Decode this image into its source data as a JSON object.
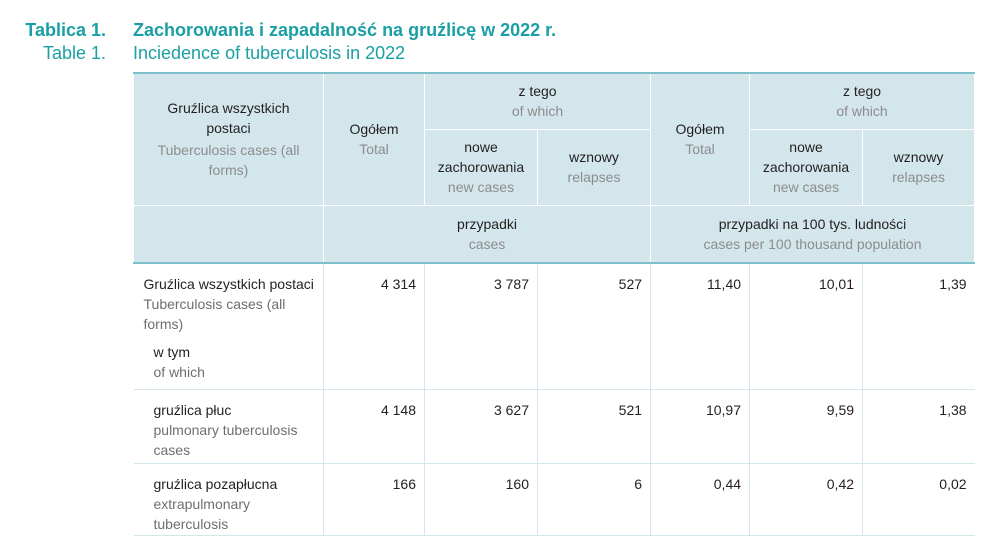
{
  "title": {
    "label_pl": "Tablica 1.",
    "label_en": "Table 1.",
    "text_pl": "Zachorowania i zapadalność na gruźlicę w 2022 r.",
    "text_en": "Inciedence of tuberculosis in 2022"
  },
  "header": {
    "col0_pl": "Gruźlica wszystkich postaci",
    "col0_en": "Tuberculosis cases (all forms)",
    "total_pl": "Ogółem",
    "total_en": "Total",
    "of_which_pl": "z tego",
    "of_which_en": "of which",
    "new_pl": "nowe zachorowania",
    "new_en": "new cases",
    "relapses_pl": "wznowy",
    "relapses_en": "relapses",
    "cases_pl": "przypadki",
    "cases_en": "cases",
    "per100k_pl": "przypadki na 100 tys. ludności",
    "per100k_en": "cases per 100 thousand population"
  },
  "rows": [
    {
      "label_pl": "Gruźlica wszystkich postaci",
      "label_en": "Tuberculosis cases (all forms)",
      "sub_pl": "w tym",
      "sub_en": "of which",
      "values": [
        "4 314",
        "3 787",
        "527",
        "11,40",
        "10,01",
        "1,39"
      ]
    },
    {
      "label_pl": "gruźlica płuc",
      "label_en": "pulmonary tuberculosis cases",
      "values": [
        "4 148",
        "3 627",
        "521",
        "10,97",
        "9,59",
        "1,38"
      ]
    },
    {
      "label_pl": "gruźlica pozapłucna",
      "label_en": "extrapulmonary tuberculosis",
      "values": [
        "166",
        "160",
        "6",
        "0,44",
        "0,42",
        "0,02"
      ]
    }
  ]
}
